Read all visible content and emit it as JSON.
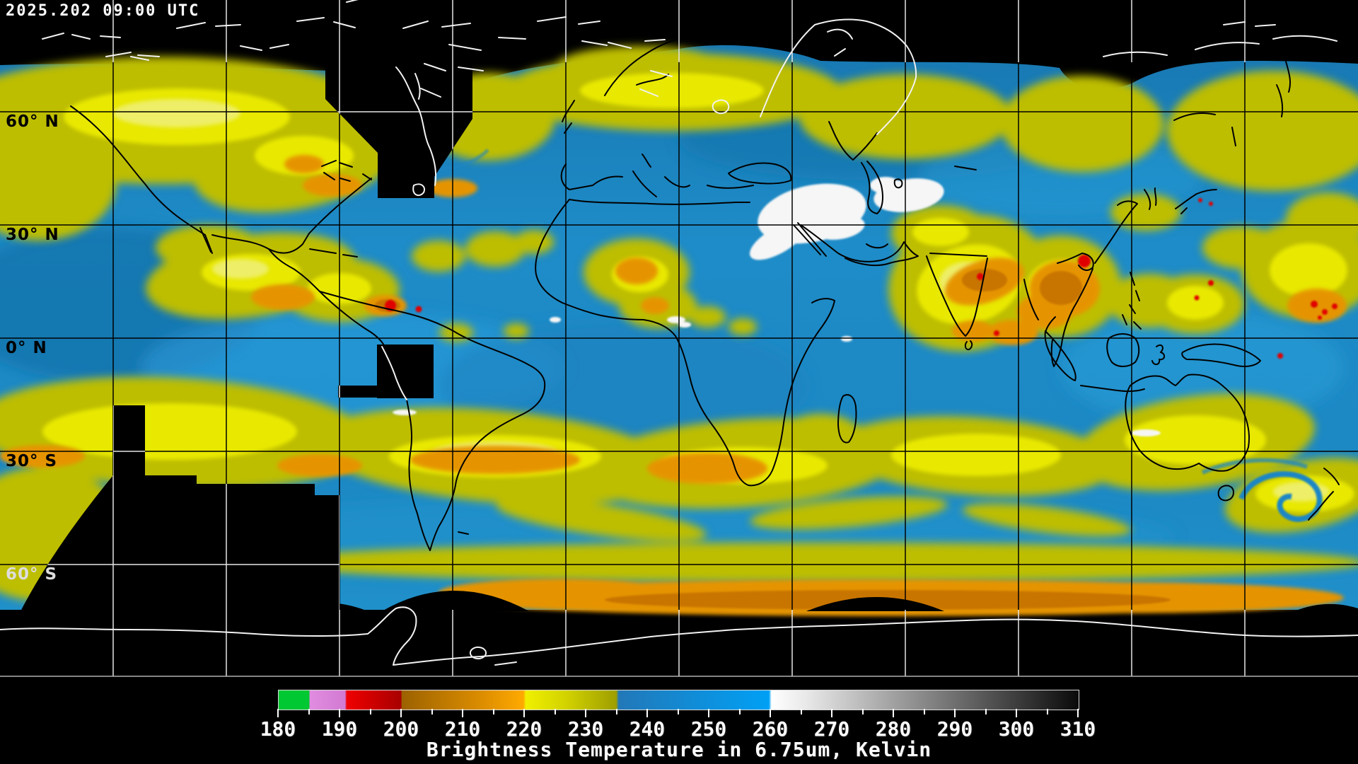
{
  "header": {
    "timestamp": "2025.202 09:00 UTC"
  },
  "map": {
    "description": "Global geostationary satellite water vapor composite on equirectangular projection",
    "grid": {
      "lon_spacing_deg": 30,
      "lat_spacing_deg": 30
    },
    "lat_labels": [
      {
        "text": "60° N",
        "color": "#000000"
      },
      {
        "text": "30° N",
        "color": "#000000"
      },
      {
        "text": "0° N",
        "color": "#000000"
      },
      {
        "text": "30° S",
        "color": "#000000"
      },
      {
        "text": "60° S",
        "color": "#dddddd"
      }
    ],
    "palette": [
      {
        "range": "180-185",
        "color": "#00C832",
        "name": "green"
      },
      {
        "range": "185-191",
        "color": "#DC8CDC",
        "name": "violet"
      },
      {
        "range": "191-200",
        "color": "#E00000",
        "name": "red"
      },
      {
        "range": "200-220",
        "color": "#DC8C00",
        "name": "orange"
      },
      {
        "range": "220-235",
        "color": "#D2D200",
        "name": "yellow"
      },
      {
        "range": "235-260",
        "color": "#1E8CCC",
        "name": "blue"
      },
      {
        "range": "260-310",
        "color": "#FFFFFF to #000000",
        "name": "grayscale"
      }
    ]
  },
  "colorbar": {
    "title": "Brightness Temperature in 6.75um, Kelvin",
    "unit": "Kelvin",
    "min": 180,
    "max": 310,
    "ticks": [
      {
        "v": 180,
        "major": true
      },
      {
        "v": 185,
        "major": false
      },
      {
        "v": 190,
        "major": true
      },
      {
        "v": 195,
        "major": false
      },
      {
        "v": 200,
        "major": true
      },
      {
        "v": 205,
        "major": false
      },
      {
        "v": 210,
        "major": true
      },
      {
        "v": 215,
        "major": false
      },
      {
        "v": 220,
        "major": true
      },
      {
        "v": 225,
        "major": false
      },
      {
        "v": 230,
        "major": true
      },
      {
        "v": 235,
        "major": false
      },
      {
        "v": 240,
        "major": true
      },
      {
        "v": 245,
        "major": false
      },
      {
        "v": 250,
        "major": true
      },
      {
        "v": 255,
        "major": false
      },
      {
        "v": 260,
        "major": true
      },
      {
        "v": 265,
        "major": false
      },
      {
        "v": 270,
        "major": true
      },
      {
        "v": 275,
        "major": false
      },
      {
        "v": 280,
        "major": true
      },
      {
        "v": 285,
        "major": false
      },
      {
        "v": 290,
        "major": true
      },
      {
        "v": 295,
        "major": false
      },
      {
        "v": 300,
        "major": true
      },
      {
        "v": 305,
        "major": false
      },
      {
        "v": 310,
        "major": true
      }
    ]
  }
}
